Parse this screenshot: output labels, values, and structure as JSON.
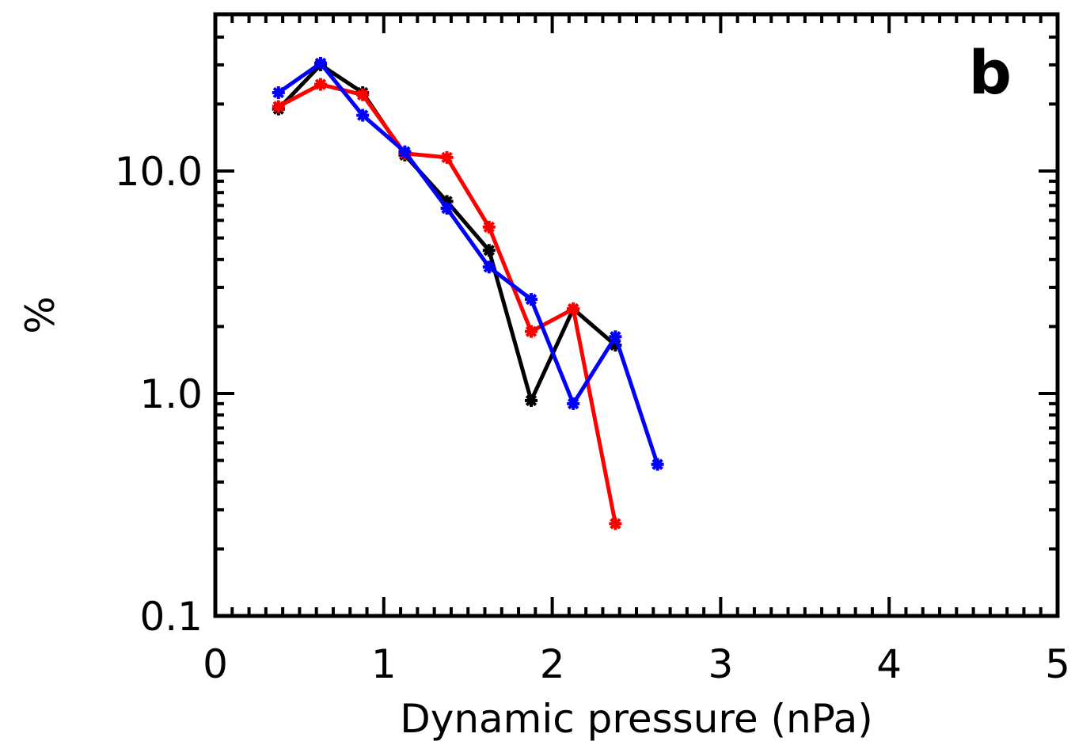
{
  "chart_data": {
    "type": "line",
    "panel_label": "b",
    "xlabel": "Dynamic pressure (nPa)",
    "ylabel": "%",
    "xlim": [
      0,
      5
    ],
    "ylim": [
      0.1,
      50
    ],
    "yscale": "log",
    "x_ticks": [
      0,
      1,
      2,
      3,
      4,
      5
    ],
    "x_tick_labels": [
      "0",
      "1",
      "2",
      "3",
      "4",
      "5"
    ],
    "y_ticks": [
      0.1,
      1.0,
      10.0
    ],
    "y_tick_labels": [
      "0.1",
      "1.0",
      "10.0"
    ],
    "grid": false,
    "marker": "asterisk",
    "series": [
      {
        "color": "#000000",
        "x": [
          0.375,
          0.625,
          0.875,
          1.125,
          1.375,
          1.625,
          1.875,
          2.125,
          2.375
        ],
        "y": [
          19.0,
          30.0,
          22.5,
          11.8,
          7.3,
          4.4,
          0.93,
          2.4,
          1.65
        ]
      },
      {
        "color": "#ff0000",
        "x": [
          0.375,
          0.625,
          0.875,
          1.125,
          1.375,
          1.625,
          1.875,
          2.125,
          2.375
        ],
        "y": [
          19.5,
          24.5,
          22.0,
          12.0,
          11.5,
          5.6,
          1.9,
          2.4,
          0.26
        ]
      },
      {
        "color": "#0000ff",
        "x": [
          0.375,
          0.625,
          0.875,
          1.125,
          1.375,
          1.625,
          1.875,
          2.125,
          2.375,
          2.625
        ],
        "y": [
          22.5,
          30.5,
          17.8,
          12.2,
          6.8,
          3.7,
          2.65,
          0.9,
          1.8,
          0.48
        ]
      }
    ]
  }
}
